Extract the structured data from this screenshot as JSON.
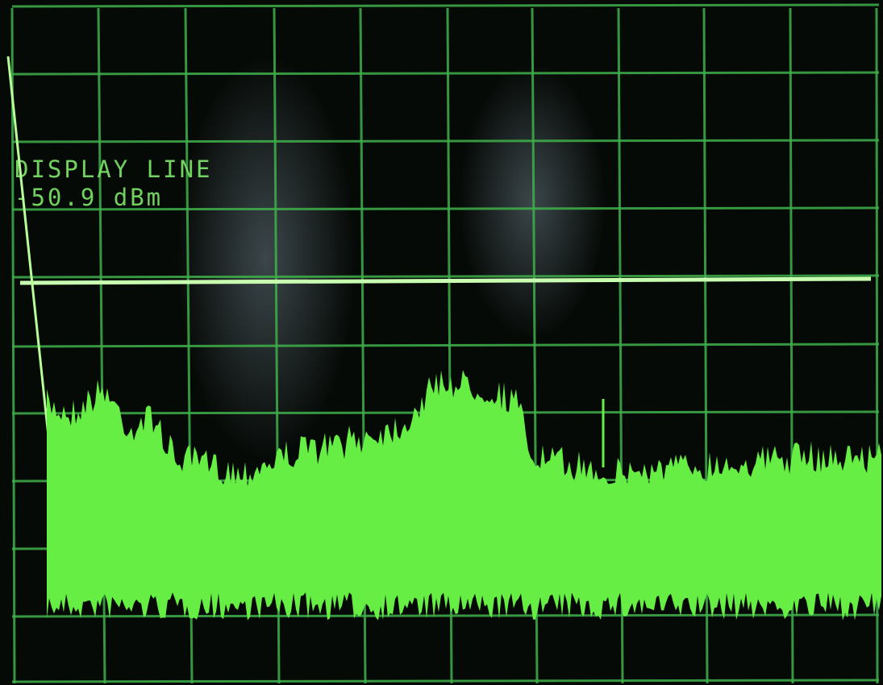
{
  "display": {
    "label": "DISPLAY LINE",
    "level": "-50.9 dBm"
  }
}
